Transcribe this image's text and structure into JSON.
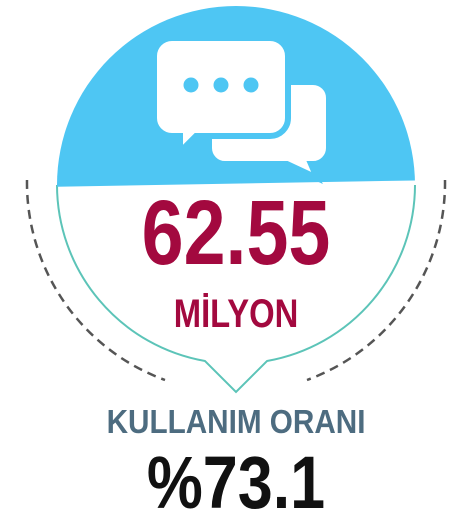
{
  "stat": {
    "value": "62.55",
    "unit": "MİLYON",
    "label": "KULLANIM ORANI",
    "rate": "%73.1"
  }
}
